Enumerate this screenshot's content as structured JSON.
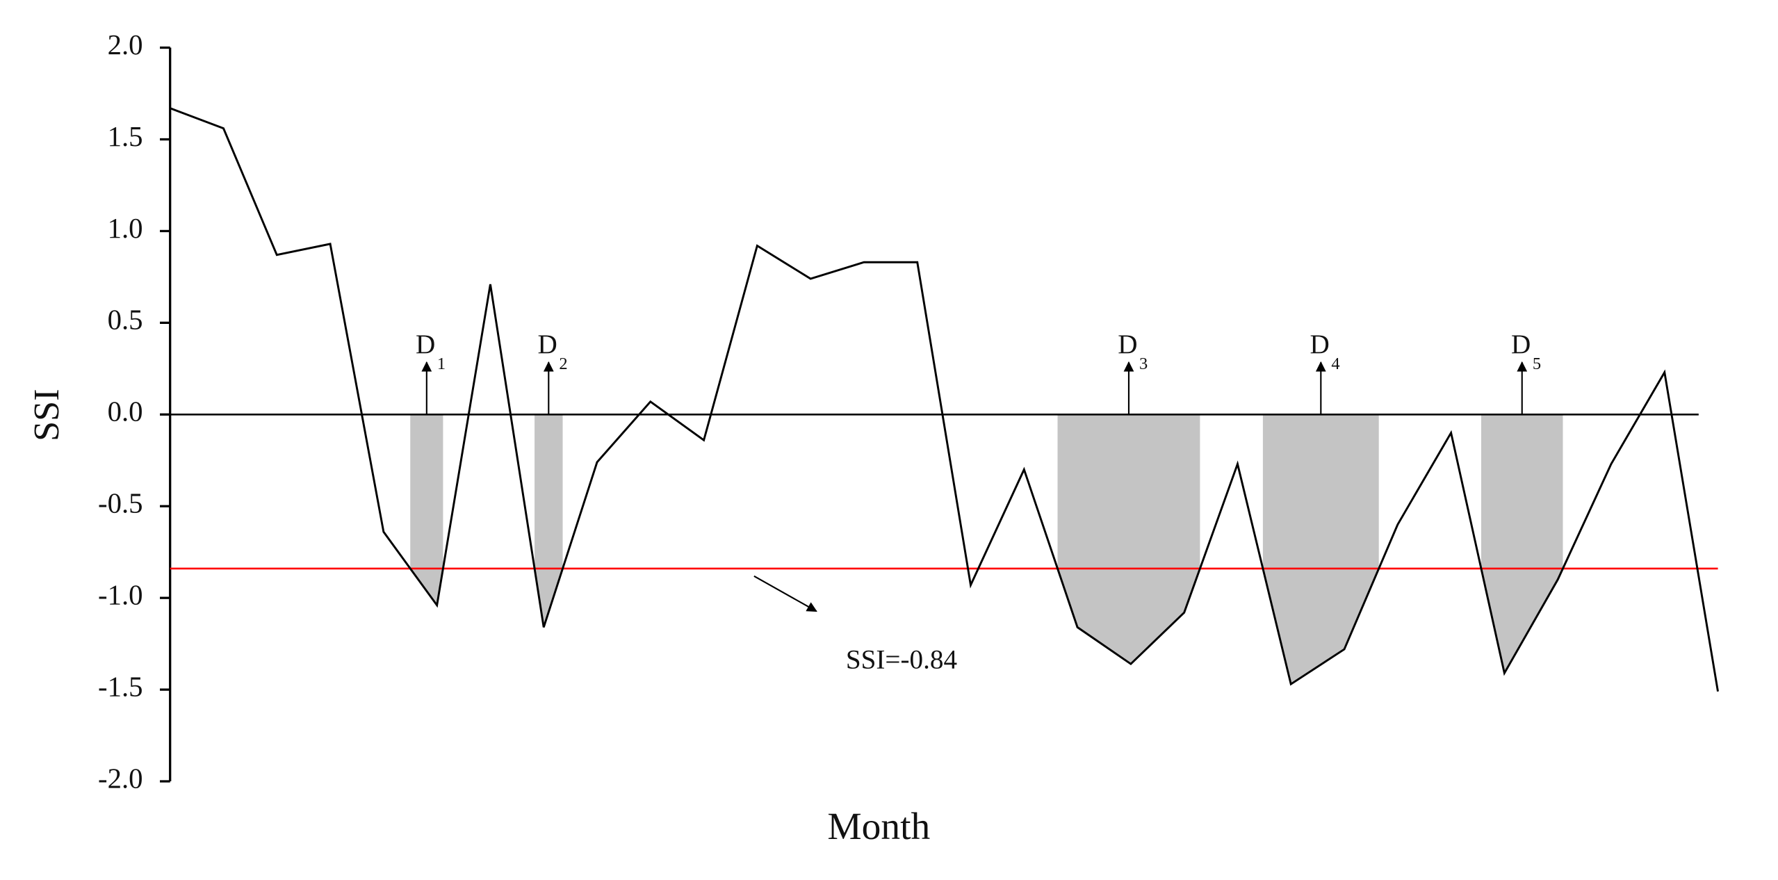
{
  "chart_data": {
    "type": "line",
    "x_label": "Month",
    "y_label": "SSI",
    "x": [
      1,
      2,
      3,
      4,
      5,
      6,
      7,
      8,
      9,
      10,
      11,
      12,
      13,
      14,
      15,
      16,
      17,
      18,
      19,
      20,
      21,
      22,
      23,
      24,
      25,
      26,
      27,
      28,
      29,
      30
    ],
    "values": [
      1.67,
      1.56,
      0.87,
      0.93,
      -0.64,
      -1.04,
      0.71,
      -1.16,
      -0.26,
      0.07,
      -0.14,
      0.92,
      0.74,
      0.83,
      0.83,
      -0.93,
      -0.3,
      -1.16,
      -1.36,
      -1.08,
      -0.27,
      -1.47,
      -1.28,
      -0.6,
      -0.1,
      -1.41,
      -0.9,
      -0.27,
      0.23,
      -1.51
    ],
    "color": "#000000",
    "xlim": [
      1,
      30
    ],
    "ylim": [
      -2,
      2
    ],
    "yticks": [
      {
        "value": 2,
        "label": "2.0"
      },
      1.5,
      {
        "value": 1,
        "label": "1.0"
      },
      0.5,
      {
        "value": 0,
        "label": "0.0"
      },
      -0.5,
      {
        "value": -1,
        "label": "-1.0"
      },
      -1.5,
      {
        "value": -2,
        "label": "-2.0"
      }
    ],
    "threshold": {
      "value": -0.84,
      "label": "SSI=-0.84",
      "color": "#ff0000"
    },
    "shade_color": "#c4c4c4",
    "droughts": [
      {
        "label": "D",
        "subscript": "1",
        "start": 6,
        "end": 6
      },
      {
        "label": "D",
        "subscript": "2",
        "start": 8,
        "end": 8
      },
      {
        "label": "D",
        "subscript": "3",
        "start": 18,
        "end": 20
      },
      {
        "label": "D",
        "subscript": "4",
        "start": 22,
        "end": 23
      },
      {
        "label": "D",
        "subscript": "5",
        "start": 26,
        "end": 27
      }
    ]
  }
}
